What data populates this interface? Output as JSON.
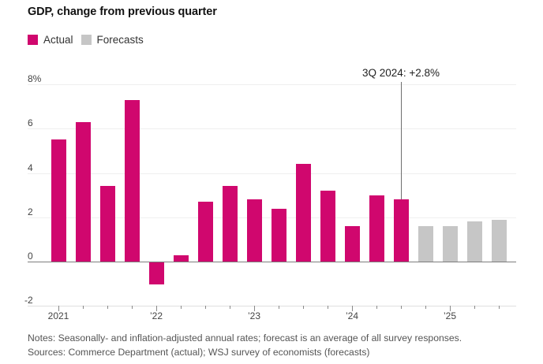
{
  "title": "GDP, change from previous quarter",
  "legend": [
    {
      "label": "Actual",
      "color": "#d0076e"
    },
    {
      "label": "Forecasts",
      "color": "#c6c6c6"
    }
  ],
  "colors": {
    "actual": "#d0076e",
    "forecast": "#c6c6c6",
    "gridline": "#efefef",
    "zero_line": "#7d7d7d",
    "axis_line": "#e0e0e0",
    "tick": "#8a8a8a",
    "annotation_line": "#6f6f6f"
  },
  "chart_data": {
    "type": "bar",
    "title": "GDP, change from previous quarter",
    "unit": "%",
    "ylim": [
      -2,
      8
    ],
    "grid": true,
    "legend_position": "top-left",
    "y_ticks": [
      {
        "value": 8,
        "label": "8%"
      },
      {
        "value": 6,
        "label": "6"
      },
      {
        "value": 4,
        "label": "4"
      },
      {
        "value": 2,
        "label": "2"
      },
      {
        "value": 0,
        "label": "0"
      },
      {
        "value": -2,
        "label": "-2"
      }
    ],
    "x_year_ticks": [
      {
        "label": "2021",
        "bar_index": 0
      },
      {
        "label": "’22",
        "bar_index": 4
      },
      {
        "label": "’23",
        "bar_index": 8
      },
      {
        "label": "’24",
        "bar_index": 12
      },
      {
        "label": "’25",
        "bar_index": 16
      }
    ],
    "bars": [
      {
        "quarter": "1Q 2021",
        "value": 5.5,
        "series": "Actual"
      },
      {
        "quarter": "2Q 2021",
        "value": 6.3,
        "series": "Actual"
      },
      {
        "quarter": "3Q 2021",
        "value": 3.4,
        "series": "Actual"
      },
      {
        "quarter": "4Q 2021",
        "value": 7.3,
        "series": "Actual"
      },
      {
        "quarter": "1Q 2022",
        "value": -1.0,
        "series": "Actual"
      },
      {
        "quarter": "2Q 2022",
        "value": 0.3,
        "series": "Actual"
      },
      {
        "quarter": "3Q 2022",
        "value": 2.7,
        "series": "Actual"
      },
      {
        "quarter": "4Q 2022",
        "value": 3.4,
        "series": "Actual"
      },
      {
        "quarter": "1Q 2023",
        "value": 2.8,
        "series": "Actual"
      },
      {
        "quarter": "2Q 2023",
        "value": 2.4,
        "series": "Actual"
      },
      {
        "quarter": "3Q 2023",
        "value": 4.4,
        "series": "Actual"
      },
      {
        "quarter": "4Q 2023",
        "value": 3.2,
        "series": "Actual"
      },
      {
        "quarter": "1Q 2024",
        "value": 1.6,
        "series": "Actual"
      },
      {
        "quarter": "2Q 2024",
        "value": 3.0,
        "series": "Actual"
      },
      {
        "quarter": "3Q 2024",
        "value": 2.8,
        "series": "Actual"
      },
      {
        "quarter": "4Q 2024",
        "value": 1.6,
        "series": "Forecasts"
      },
      {
        "quarter": "1Q 2025",
        "value": 1.6,
        "series": "Forecasts"
      },
      {
        "quarter": "2Q 2025",
        "value": 1.8,
        "series": "Forecasts"
      },
      {
        "quarter": "3Q 2025",
        "value": 1.9,
        "series": "Forecasts"
      }
    ],
    "annotation": {
      "text": "3Q 2024: +2.8%",
      "bar_index": 14,
      "value": 2.8
    }
  },
  "notes": "Notes: Seasonally- and inflation-adjusted annual rates; forecast is an average of all survey responses.",
  "sources": "Sources: Commerce Department (actual); WSJ survey of economists (forecasts)"
}
